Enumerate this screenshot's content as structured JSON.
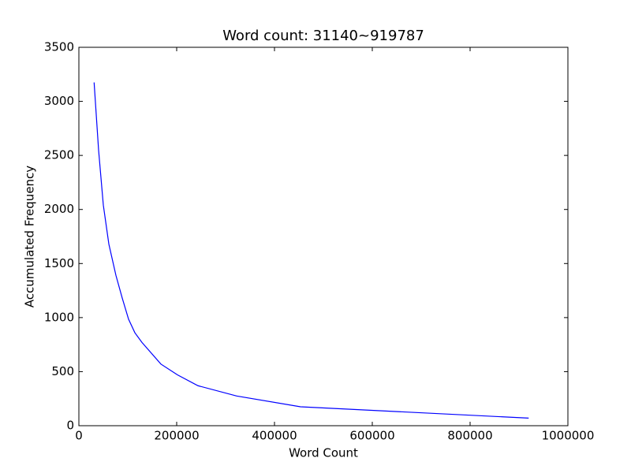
{
  "chart_data": {
    "type": "line",
    "title": "Word count: 31140~919787",
    "x_label": "Word Count",
    "y_label": "Accumulated Frequency",
    "x": [
      31140,
      40300,
      50000,
      61300,
      75800,
      88700,
      101600,
      114500,
      129000,
      167700,
      201600,
      243500,
      322600,
      453200,
      919787
    ],
    "series": [
      {
        "color": "#0000ff",
        "values": [
          3175,
          2550,
          2040,
          1680,
          1390,
          1180,
          985,
          860,
          770,
          570,
          470,
          370,
          275,
          175,
          70
        ]
      }
    ],
    "xlim": [
      0,
      1000000
    ],
    "xticks": [
      0,
      200000,
      400000,
      600000,
      800000,
      1000000
    ],
    "ylim": [
      0,
      3500
    ],
    "yticks": [
      0,
      500,
      1000,
      1500,
      2000,
      2500,
      3000,
      3500
    ]
  }
}
